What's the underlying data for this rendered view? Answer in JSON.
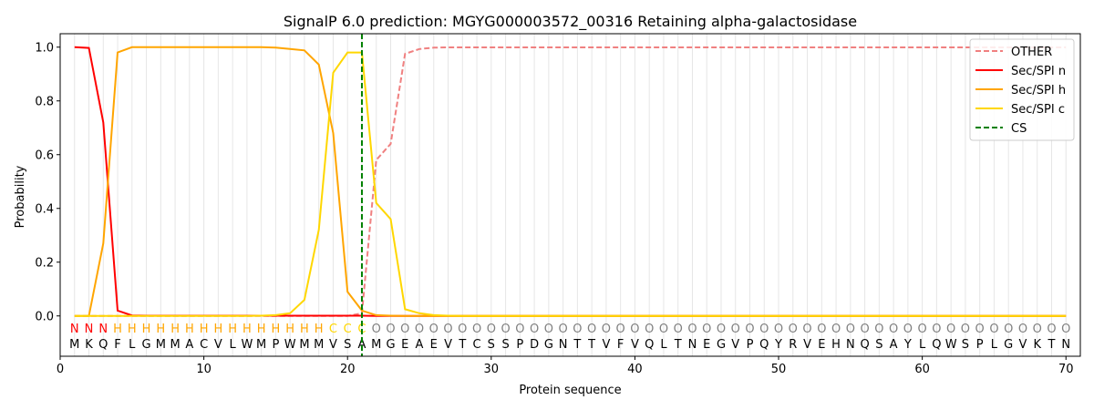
{
  "chart_data": {
    "type": "line",
    "title": "SignalP 6.0 prediction: MGYG000003572_00316 Retaining alpha-galactosidase",
    "xlabel": "Protein sequence",
    "ylabel": "Probability",
    "xlim": [
      0,
      71
    ],
    "ylim": [
      -0.15,
      1.05
    ],
    "x_ticks": [
      0,
      10,
      20,
      30,
      40,
      50,
      60,
      70
    ],
    "y_ticks": [
      0.0,
      0.2,
      0.4,
      0.6,
      0.8,
      1.0
    ],
    "x_tick_labels": [
      "0",
      "10",
      "20",
      "30",
      "40",
      "50",
      "60",
      "70"
    ],
    "y_tick_labels": [
      "0.0",
      "0.2",
      "0.4",
      "0.6",
      "0.8",
      "1.0"
    ],
    "grid": "vertical lines at each residue",
    "legend_position": "top-right",
    "sequence": [
      "M",
      "K",
      "Q",
      "F",
      "L",
      "G",
      "M",
      "M",
      "A",
      "C",
      "V",
      "L",
      "W",
      "M",
      "P",
      "W",
      "M",
      "M",
      "V",
      "S",
      "A",
      "M",
      "G",
      "E",
      "A",
      "E",
      "V",
      "T",
      "C",
      "S",
      "S",
      "P",
      "D",
      "G",
      "N",
      "T",
      "T",
      "V",
      "F",
      "V",
      "Q",
      "L",
      "T",
      "N",
      "E",
      "G",
      "V",
      "P",
      "Q",
      "Y",
      "R",
      "V",
      "E",
      "H",
      "N",
      "Q",
      "S",
      "A",
      "Y",
      "L",
      "Q",
      "W",
      "S",
      "P",
      "L",
      "G",
      "V",
      "K",
      "T",
      "N"
    ],
    "labels": [
      "N",
      "N",
      "N",
      "H",
      "H",
      "H",
      "H",
      "H",
      "H",
      "H",
      "H",
      "H",
      "H",
      "H",
      "H",
      "H",
      "H",
      "H",
      "C",
      "C",
      "C",
      "O",
      "O",
      "O",
      "O",
      "O",
      "O",
      "O",
      "O",
      "O",
      "O",
      "O",
      "O",
      "O",
      "O",
      "O",
      "O",
      "O",
      "O",
      "O",
      "O",
      "O",
      "O",
      "O",
      "O",
      "O",
      "O",
      "O",
      "O",
      "O",
      "O",
      "O",
      "O",
      "O",
      "O",
      "O",
      "O",
      "O",
      "O",
      "O",
      "O",
      "O",
      "O",
      "O",
      "O",
      "O",
      "O",
      "O",
      "O",
      "O"
    ],
    "label_colors": {
      "N": "#ff0000",
      "H": "#ffa500",
      "C": "#ffd700",
      "O": "#808080"
    },
    "cleavage_site": 21,
    "series": [
      {
        "name": "OTHER",
        "color": "#f08080",
        "dash": true,
        "values": [
          0,
          0,
          0,
          0,
          0,
          0,
          0,
          0,
          0,
          0,
          0,
          0,
          0,
          0,
          0,
          0,
          0,
          0,
          0,
          0,
          0.01,
          0.58,
          0.64,
          0.975,
          0.993,
          0.998,
          0.999,
          0.999,
          0.999,
          0.999,
          0.999,
          0.999,
          0.999,
          0.999,
          0.999,
          0.999,
          0.999,
          0.999,
          0.999,
          0.999,
          0.999,
          0.999,
          0.999,
          0.999,
          0.999,
          0.999,
          0.999,
          0.999,
          0.999,
          0.999,
          0.999,
          0.999,
          0.999,
          0.999,
          0.999,
          0.999,
          0.999,
          0.999,
          0.999,
          0.999,
          0.999,
          0.999,
          0.999,
          0.999,
          0.999,
          0.999,
          0.999,
          0.999,
          0.999,
          0.999
        ]
      },
      {
        "name": "Sec/SPI n",
        "color": "#ff0000",
        "dash": false,
        "values": [
          1.0,
          0.997,
          0.72,
          0.02,
          0.002,
          0.001,
          0.001,
          0.001,
          0.001,
          0.001,
          0.001,
          0.001,
          0.001,
          0.001,
          0.001,
          0.001,
          0.001,
          0.001,
          0.001,
          0.001,
          0.001,
          0,
          0,
          0,
          0,
          0,
          0,
          0,
          0,
          0,
          0,
          0,
          0,
          0,
          0,
          0,
          0,
          0,
          0,
          0,
          0,
          0,
          0,
          0,
          0,
          0,
          0,
          0,
          0,
          0,
          0,
          0,
          0,
          0,
          0,
          0,
          0,
          0,
          0,
          0,
          0,
          0,
          0,
          0,
          0,
          0,
          0,
          0,
          0,
          0
        ]
      },
      {
        "name": "Sec/SPI h",
        "color": "#ffa500",
        "dash": false,
        "values": [
          0,
          0,
          0.27,
          0.98,
          1.0,
          1.0,
          1.0,
          1.0,
          1.0,
          1.0,
          1.0,
          1.0,
          1.0,
          1.0,
          0.998,
          0.993,
          0.988,
          0.935,
          0.68,
          0.09,
          0.02,
          0.003,
          0.001,
          0,
          0,
          0,
          0,
          0,
          0,
          0,
          0,
          0,
          0,
          0,
          0,
          0,
          0,
          0,
          0,
          0,
          0,
          0,
          0,
          0,
          0,
          0,
          0,
          0,
          0,
          0,
          0,
          0,
          0,
          0,
          0,
          0,
          0,
          0,
          0,
          0,
          0,
          0,
          0,
          0,
          0,
          0,
          0,
          0,
          0,
          0
        ]
      },
      {
        "name": "Sec/SPI c",
        "color": "#ffd700",
        "dash": false,
        "values": [
          0,
          0,
          0,
          0,
          0,
          0,
          0,
          0,
          0,
          0,
          0,
          0,
          0,
          0.001,
          0.003,
          0.01,
          0.06,
          0.32,
          0.905,
          0.98,
          0.98,
          0.42,
          0.36,
          0.025,
          0.01,
          0.003,
          0.001,
          0,
          0,
          0,
          0,
          0,
          0,
          0,
          0,
          0,
          0,
          0,
          0,
          0,
          0,
          0,
          0,
          0,
          0,
          0,
          0,
          0,
          0,
          0,
          0,
          0,
          0,
          0,
          0,
          0,
          0,
          0,
          0,
          0,
          0,
          0,
          0,
          0,
          0,
          0,
          0,
          0,
          0,
          0
        ]
      },
      {
        "name": "CS",
        "color": "#008000",
        "dash": true,
        "vertical_at": 21
      }
    ]
  }
}
